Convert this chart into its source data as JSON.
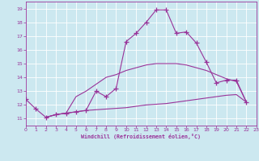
{
  "xlabel": "Windchill (Refroidissement éolien,°C)",
  "xlim": [
    0,
    23
  ],
  "ylim": [
    10.5,
    19.5
  ],
  "yticks": [
    11,
    12,
    13,
    14,
    15,
    16,
    17,
    18,
    19
  ],
  "xticks": [
    0,
    1,
    2,
    3,
    4,
    5,
    6,
    7,
    8,
    9,
    10,
    11,
    12,
    13,
    14,
    15,
    16,
    17,
    18,
    19,
    20,
    21,
    22,
    23
  ],
  "bg_color": "#cce8f0",
  "line_color": "#993399",
  "grid_color": "#ffffff",
  "line1_x": [
    0,
    1,
    2,
    3,
    4,
    5,
    6,
    7,
    8,
    9,
    10,
    11,
    12,
    13,
    14,
    15,
    16,
    17,
    18,
    19,
    20,
    21,
    22
  ],
  "line1_y": [
    12.4,
    11.7,
    11.1,
    11.3,
    11.4,
    11.5,
    11.6,
    13.0,
    12.6,
    13.2,
    16.6,
    17.2,
    18.0,
    18.9,
    18.9,
    17.2,
    17.3,
    16.5,
    15.1,
    13.6,
    13.8,
    13.8,
    12.2
  ],
  "line2_x": [
    2,
    3,
    4,
    5,
    6,
    7,
    8,
    9,
    10,
    11,
    12,
    13,
    14,
    15,
    16,
    17,
    18,
    19,
    20,
    21,
    22
  ],
  "line2_y": [
    11.1,
    11.3,
    11.4,
    12.6,
    13.0,
    13.5,
    14.0,
    14.2,
    14.5,
    14.7,
    14.9,
    15.0,
    15.0,
    15.0,
    14.9,
    14.7,
    14.5,
    14.2,
    13.9,
    13.7,
    12.2
  ],
  "line3_x": [
    2,
    3,
    4,
    5,
    6,
    7,
    8,
    9,
    10,
    11,
    12,
    13,
    14,
    15,
    16,
    17,
    18,
    19,
    20,
    21,
    22
  ],
  "line3_y": [
    11.1,
    11.3,
    11.4,
    11.5,
    11.6,
    11.65,
    11.7,
    11.75,
    11.8,
    11.9,
    12.0,
    12.05,
    12.1,
    12.2,
    12.3,
    12.4,
    12.5,
    12.6,
    12.7,
    12.75,
    12.2
  ]
}
